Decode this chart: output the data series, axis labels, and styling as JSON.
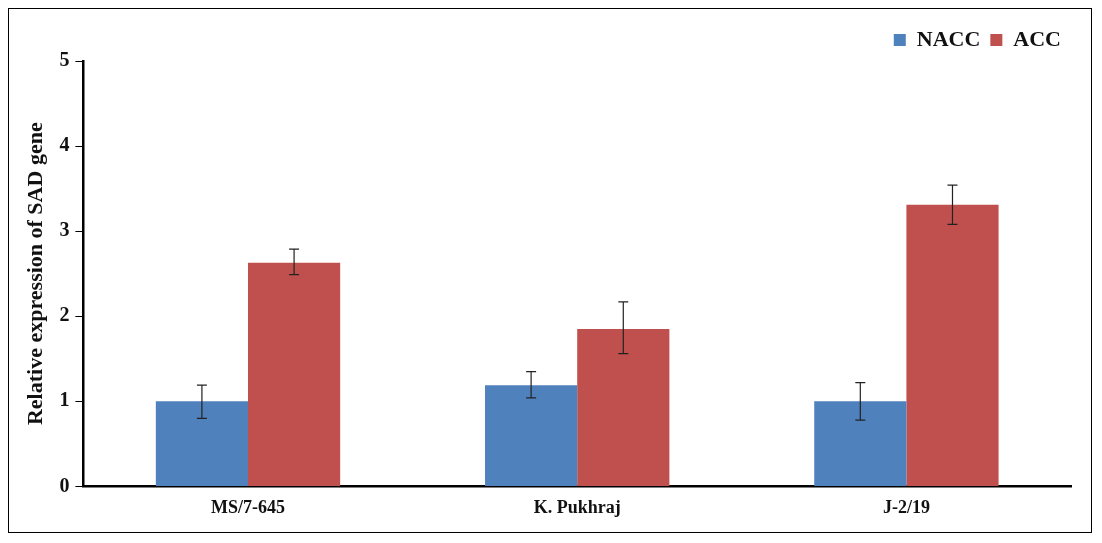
{
  "chart_data": {
    "type": "bar",
    "ylabel": "Relative expression of SAD gene",
    "categories": [
      "MS/7-645",
      "K. Pukhraj",
      "J-2/19"
    ],
    "series": [
      {
        "name": "NACC",
        "color": "#4f81bd",
        "values": [
          1.0,
          1.19,
          1.0
        ],
        "errors": [
          [
            0.8,
            1.19
          ],
          [
            1.04,
            1.35
          ],
          [
            0.78,
            1.22
          ]
        ]
      },
      {
        "name": "ACC",
        "color": "#c0504d",
        "values": [
          2.63,
          1.85,
          3.31
        ],
        "errors": [
          [
            2.49,
            2.79
          ],
          [
            1.56,
            2.17
          ],
          [
            3.08,
            3.54
          ]
        ]
      }
    ],
    "ylim": [
      0,
      5
    ],
    "yticks": [
      0,
      1,
      2,
      3,
      4,
      5
    ],
    "grid": false,
    "legend": "top right"
  }
}
